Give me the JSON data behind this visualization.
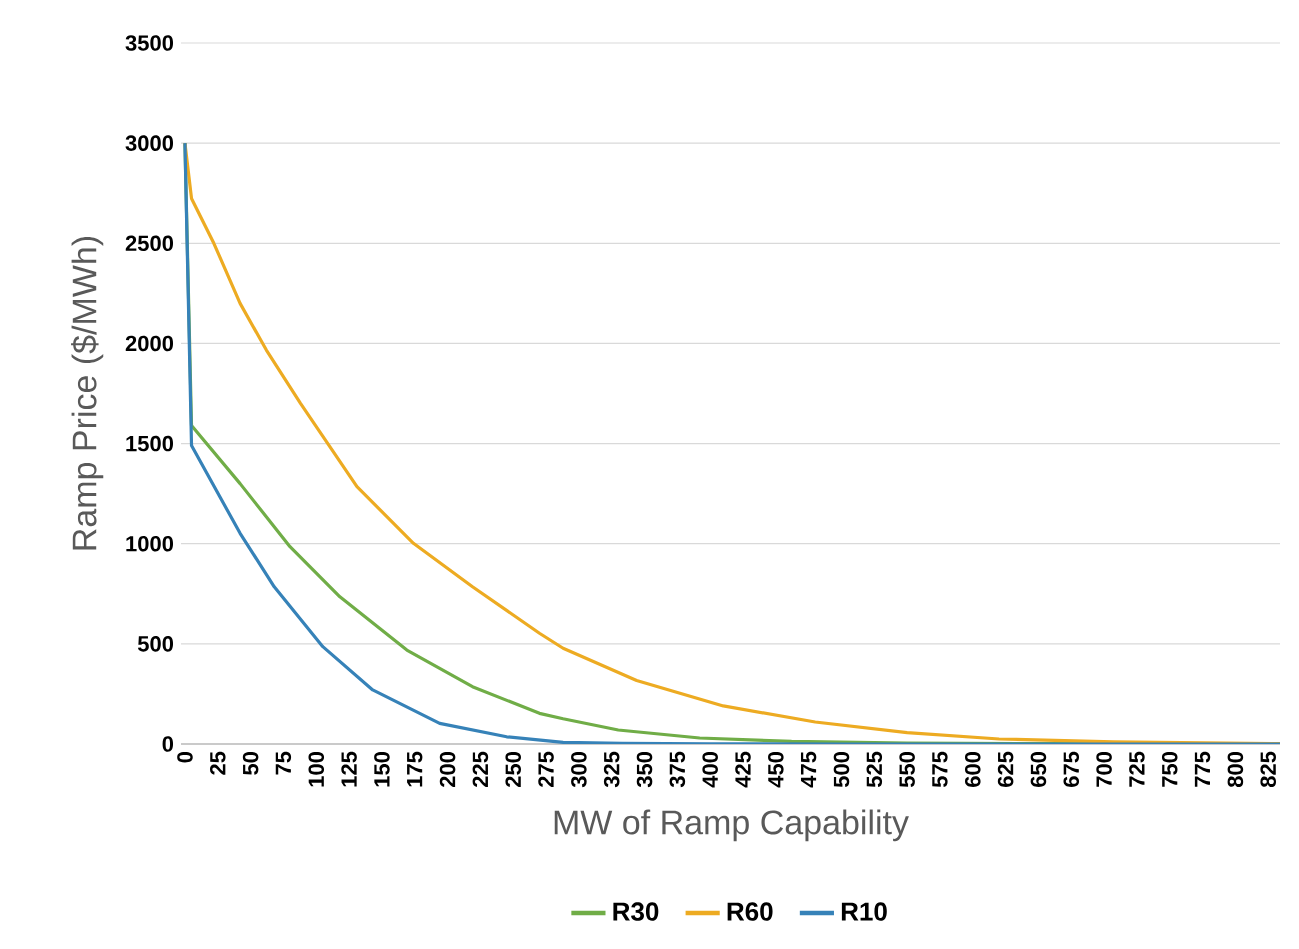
{
  "chart_data": {
    "type": "line",
    "xlabel": "MW of Ramp Capability",
    "ylabel": "Ramp Price ($/MWh)",
    "xlim": [
      -3,
      834
    ],
    "ylim": [
      0,
      3500
    ],
    "xticks": [
      0,
      25,
      50,
      75,
      100,
      125,
      150,
      175,
      200,
      225,
      250,
      275,
      300,
      325,
      350,
      375,
      400,
      425,
      450,
      475,
      500,
      525,
      550,
      575,
      600,
      625,
      650,
      675,
      700,
      725,
      750,
      775,
      800,
      825
    ],
    "yticks": [
      0,
      500,
      1000,
      1500,
      2000,
      2500,
      3000,
      3500
    ],
    "grid": "y",
    "legend": "bottom",
    "marker": "none",
    "line_style": "solid",
    "series": [
      {
        "name": "R30",
        "color": "#70ad47",
        "x": [
          0,
          5,
          42,
          80,
          118,
          169,
          219,
          270,
          288,
          330,
          392,
          462,
          550,
          650,
          834
        ],
        "values": [
          3000,
          1590,
          1300,
          985,
          735,
          469,
          286,
          153,
          126,
          70,
          30,
          13,
          5,
          2,
          0
        ]
      },
      {
        "name": "R60",
        "color": "#edab22",
        "x": [
          0,
          5,
          22,
          42,
          62,
          88,
          131,
          174,
          219,
          270,
          288,
          344,
          410,
          480,
          550,
          620,
          707,
          834
        ],
        "values": [
          3000,
          2724,
          2500,
          2200,
          1967,
          1701,
          1285,
          1002,
          785,
          553,
          478,
          317,
          190,
          110,
          57,
          25,
          11,
          2
        ]
      },
      {
        "name": "R10",
        "color": "#3682b8",
        "x": [
          0,
          5,
          42,
          68,
          105,
          143,
          194,
          245,
          288,
          333,
          400,
          500,
          834
        ],
        "values": [
          3000,
          1490,
          1052,
          785,
          486,
          270,
          103,
          36,
          8,
          3,
          1,
          0,
          0
        ]
      }
    ]
  }
}
